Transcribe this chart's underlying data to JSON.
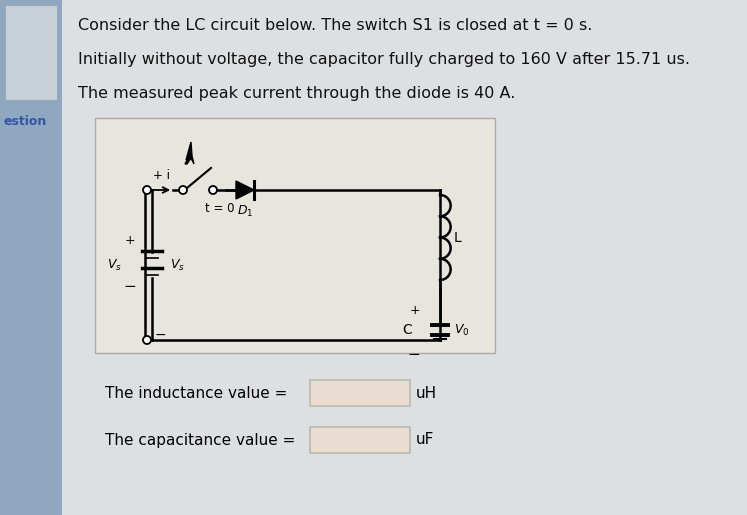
{
  "bg_color": "#cdd5dc",
  "main_bg": "#dde0e3",
  "circuit_bg": "#e8e4de",
  "left_panel_color": "#8fa8c0",
  "left_panel_box_color": "#c8d0d8",
  "text_lines": [
    "Consider the LC circuit below. The switch S1 is closed at t = 0 s.",
    "Initially without voltage, the capacitor fully charged to 160 V after 15.71 us.",
    "The measured peak current through the diode is 40 A."
  ],
  "left_label": "estion",
  "inductance_label": "The inductance value =",
  "inductance_unit": "uH",
  "capacitance_label": "The capacitance value =",
  "capacitance_unit": "uF",
  "input_box_color": "#e8ddd0",
  "font_size_text": 11.5,
  "font_size_label": 11
}
